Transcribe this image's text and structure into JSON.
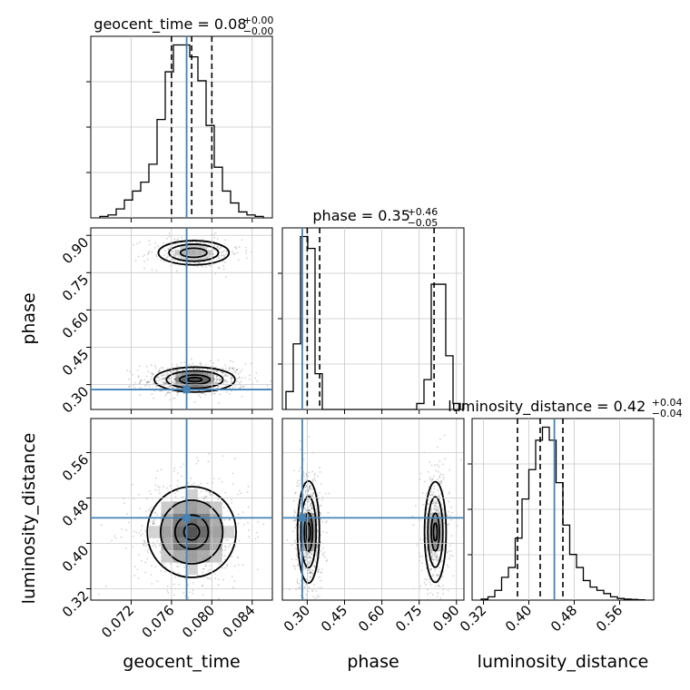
{
  "chart_data": {
    "type": "corner",
    "parameters": [
      {
        "name": "geocent_time",
        "label": "geocent_time",
        "range": [
          0.068,
          0.086
        ],
        "ticks": [
          "0.072",
          "0.076",
          "0.080",
          "0.084"
        ],
        "tick_values": [
          0.072,
          0.076,
          0.08,
          0.084
        ],
        "truth": 0.0775,
        "title": {
          "main": "geocent_time = 0.08",
          "sup": "+0.00",
          "sub": "−0.00"
        },
        "quantiles": [
          0.076,
          0.078,
          0.08
        ],
        "hist": [
          0.5,
          1,
          3,
          6,
          9,
          12,
          18,
          33,
          49,
          58,
          58,
          54,
          46,
          31,
          17,
          9,
          5,
          2,
          1,
          0.5
        ]
      },
      {
        "name": "phase",
        "label": "phase",
        "range": [
          0.2,
          0.93
        ],
        "ticks": [
          "0.30",
          "0.45",
          "0.60",
          "0.75",
          "0.90"
        ],
        "tick_values": [
          0.3,
          0.45,
          0.6,
          0.75,
          0.9
        ],
        "truth": 0.28,
        "title": {
          "main": "phase = 0.35",
          "sup": "+0.46",
          "sub": "−0.05"
        },
        "quantiles": [
          0.3,
          0.35,
          0.81
        ],
        "hist": [
          3,
          11,
          29,
          27,
          6,
          0,
          0,
          0,
          0,
          0,
          0,
          0,
          0,
          0,
          0,
          0,
          0,
          0,
          1,
          5,
          21,
          21,
          9,
          1
        ]
      },
      {
        "name": "luminosity_distance",
        "label": "luminosity_distance",
        "range": [
          0.3,
          0.62
        ],
        "ticks": [
          "0.32",
          "0.40",
          "0.48",
          "0.56"
        ],
        "tick_values": [
          0.32,
          0.4,
          0.48,
          0.56
        ],
        "truth": 0.445,
        "title": {
          "main": "luminosity_distance = 0.42",
          "sup": "+0.04",
          "sub": "−0.04"
        },
        "quantiles": [
          0.38,
          0.42,
          0.46
        ],
        "hist": [
          0.3,
          1,
          3,
          7,
          10,
          19,
          31,
          40,
          49,
          53,
          49,
          36,
          23,
          14,
          10,
          6,
          4,
          3,
          2,
          1,
          0.5,
          0.3,
          0.2,
          0.1
        ]
      }
    ],
    "ytick_labels": {
      "phase": [
        "0.30",
        "0.45",
        "0.60",
        "0.75",
        "0.90"
      ],
      "luminosity_distance": [
        "0.32",
        "0.40",
        "0.48",
        "0.56"
      ]
    },
    "pair_modes": {
      "geocent_time-phase": [
        {
          "x": 0.0783,
          "y": 0.32,
          "sx": 0.002,
          "sy": 0.025,
          "w": 1.0
        },
        {
          "x": 0.0782,
          "y": 0.83,
          "sx": 0.0018,
          "sy": 0.025,
          "w": 0.45
        }
      ],
      "geocent_time-luminosity_distance": [
        {
          "x": 0.078,
          "y": 0.42,
          "sx": 0.0022,
          "sy": 0.04,
          "w": 1.0
        }
      ],
      "phase-luminosity_distance": [
        {
          "x": 0.305,
          "y": 0.42,
          "sx": 0.022,
          "sy": 0.045,
          "w": 1.0
        },
        {
          "x": 0.815,
          "y": 0.42,
          "sx": 0.022,
          "sy": 0.045,
          "w": 0.7
        }
      ]
    },
    "truth_color": "#4682b4",
    "grid": true
  }
}
